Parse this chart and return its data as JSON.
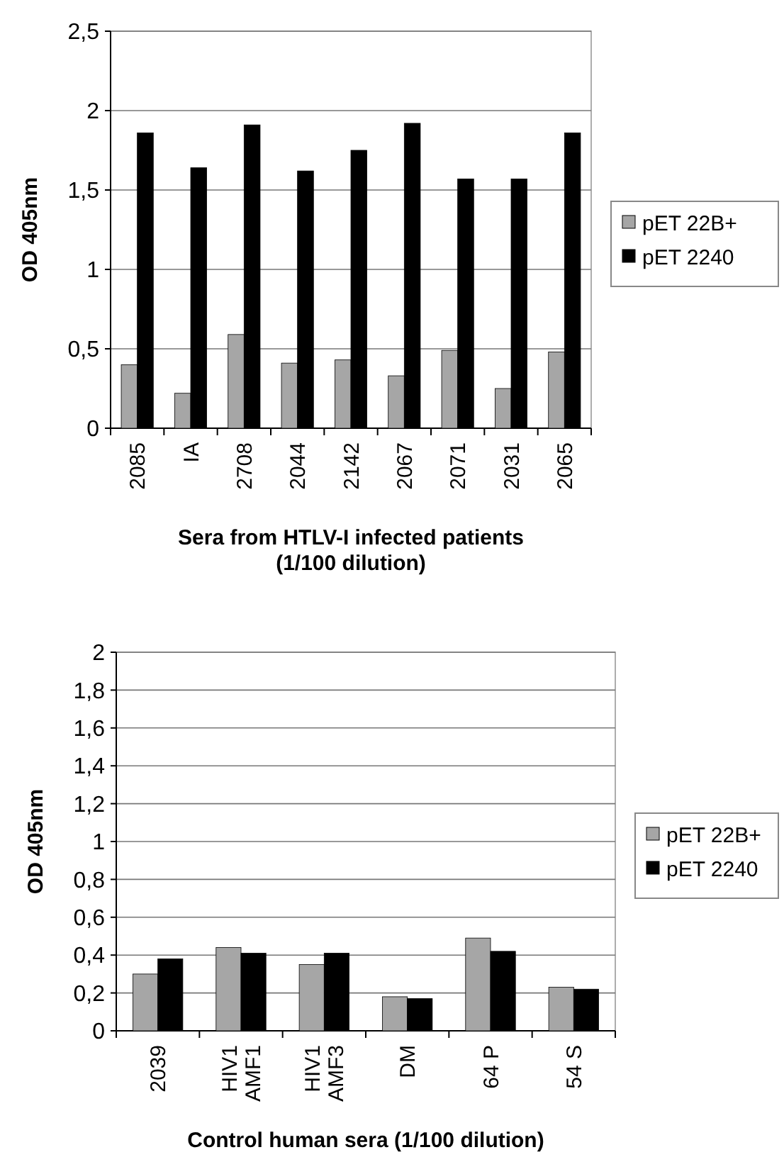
{
  "chart_data": [
    {
      "type": "bar",
      "ylabel": "OD 405nm",
      "xlabel": "Sera from HTLV-I infected patients\n(1/100 dilution)",
      "categories": [
        "2085",
        "IA",
        "2708",
        "2044",
        "2142",
        "2067",
        "2071",
        "2031",
        "2065"
      ],
      "series": [
        {
          "name": "pET 22B+",
          "color": "#a6a6a6",
          "values": [
            0.4,
            0.22,
            0.59,
            0.41,
            0.43,
            0.33,
            0.49,
            0.25,
            0.48
          ]
        },
        {
          "name": "pET 2240",
          "color": "#000000",
          "values": [
            1.86,
            1.64,
            1.91,
            1.62,
            1.75,
            1.92,
            1.57,
            1.57,
            1.86
          ]
        }
      ],
      "ylim": [
        0,
        2.5
      ],
      "yticks": [
        0,
        {
          "value": 0.5,
          "label": "0,5"
        },
        1,
        {
          "value": 1.5,
          "label": "1,5"
        },
        2,
        {
          "value": 2.5,
          "label": "2,5"
        }
      ],
      "grid": "y",
      "legend": "right"
    },
    {
      "type": "bar",
      "ylabel": "OD 405nm",
      "xlabel": "Control human sera (1/100 dilution)",
      "categories": [
        "2039",
        "HIV1\nAMF1",
        "HIV1\nAMF3",
        "DM",
        "64 P",
        "54 S"
      ],
      "series": [
        {
          "name": "pET 22B+",
          "color": "#a6a6a6",
          "values": [
            0.3,
            0.44,
            0.35,
            0.18,
            0.49,
            0.23
          ]
        },
        {
          "name": "pET 2240",
          "color": "#000000",
          "values": [
            0.38,
            0.41,
            0.41,
            0.17,
            0.42,
            0.22
          ]
        }
      ],
      "ylim": [
        0,
        2
      ],
      "yticks": [
        0,
        {
          "value": 0.2,
          "label": "0,2"
        },
        {
          "value": 0.4,
          "label": "0,4"
        },
        {
          "value": 0.6,
          "label": "0,6"
        },
        {
          "value": 0.8,
          "label": "0,8"
        },
        1,
        {
          "value": 1.2,
          "label": "1,2"
        },
        {
          "value": 1.4,
          "label": "1,4"
        },
        {
          "value": 1.6,
          "label": "1,6"
        },
        {
          "value": 1.8,
          "label": "1,8"
        },
        2
      ],
      "grid": "y",
      "legend": "right"
    }
  ]
}
